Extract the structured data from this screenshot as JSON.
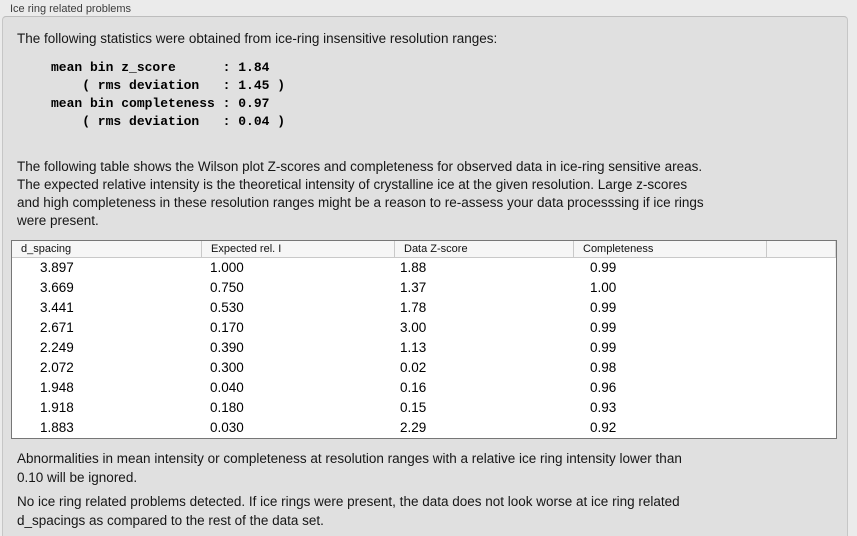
{
  "panel": {
    "title": "Ice ring related problems"
  },
  "sections": {
    "intro": "The following statistics were obtained from ice-ring insensitive resolution ranges:",
    "stats_block": "mean bin z_score      : 1.84\n    ( rms deviation   : 1.45 )\nmean bin completeness : 0.97\n    ( rms deviation   : 0.04 )",
    "table_description": "The following table shows the Wilson plot Z-scores and completeness for observed data in ice-ring sensitive areas.\nThe expected relative intensity is the theoretical intensity of crystalline ice at the given resolution. Large z-scores\nand high completeness in these resolution ranges might be a reason to re-assess your data processsing if ice rings\nwere present.",
    "ignore_note": "Abnormalities in mean intensity or completeness at resolution ranges with a relative ice ring intensity lower than\n0.10 will be ignored.",
    "conclusion": "No ice ring related problems detected. If ice rings were present, the data does not look worse at ice ring related\nd_spacings as compared to the rest of the data set."
  },
  "table": {
    "columns": [
      "d_spacing",
      "Expected rel. I",
      "Data Z-score",
      "Completeness",
      ""
    ],
    "rows": [
      [
        "3.897",
        "1.000",
        "1.88",
        "0.99",
        ""
      ],
      [
        "3.669",
        "0.750",
        "1.37",
        "1.00",
        ""
      ],
      [
        "3.441",
        "0.530",
        "1.78",
        "0.99",
        ""
      ],
      [
        "2.671",
        "0.170",
        "3.00",
        "0.99",
        ""
      ],
      [
        "2.249",
        "0.390",
        "1.13",
        "0.99",
        ""
      ],
      [
        "2.072",
        "0.300",
        "0.02",
        "0.98",
        ""
      ],
      [
        "1.948",
        "0.040",
        "0.16",
        "0.96",
        ""
      ],
      [
        "1.918",
        "0.180",
        "0.15",
        "0.93",
        ""
      ],
      [
        "1.883",
        "0.030",
        "2.29",
        "0.92",
        ""
      ]
    ]
  },
  "theme": {
    "page_bg": "#ebebeb",
    "panel_bg": "#e0e0e0",
    "table_bg": "#ffffff",
    "table_border": "#767676",
    "header_bg": "#f6f6f6"
  }
}
